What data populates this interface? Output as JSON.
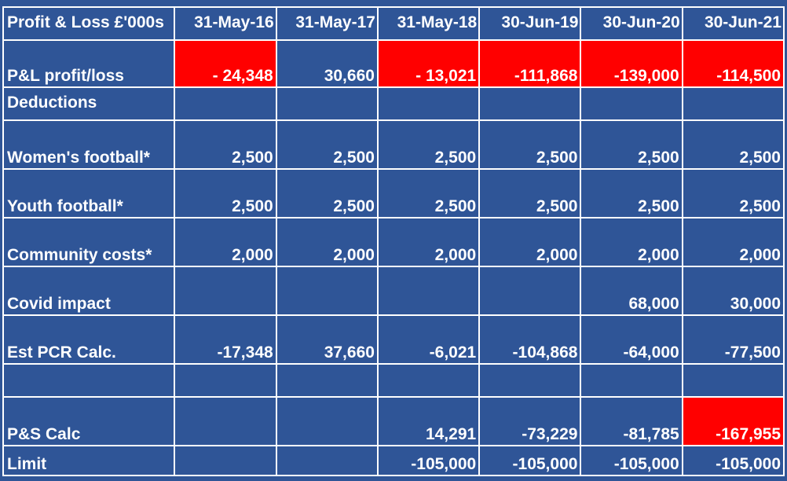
{
  "table": {
    "header": [
      "Profit & Loss £'000s",
      "31-May-16",
      "31-May-17",
      "31-May-18",
      "30-Jun-19",
      "30-Jun-20",
      "30-Jun-21"
    ],
    "rows": [
      {
        "label": "P&L profit/loss",
        "values": [
          "- 24,348",
          "30,660",
          "- 13,021",
          "-111,868",
          "-139,000",
          "-114,500"
        ],
        "red": [
          true,
          false,
          true,
          true,
          true,
          true
        ]
      },
      {
        "label": "Deductions",
        "values": [
          "",
          "",
          "",
          "",
          "",
          ""
        ]
      },
      {
        "label": "Women's football*",
        "values": [
          "2,500",
          "2,500",
          "2,500",
          "2,500",
          "2,500",
          "2,500"
        ]
      },
      {
        "label": "Youth football*",
        "values": [
          "2,500",
          "2,500",
          "2,500",
          "2,500",
          "2,500",
          "2,500"
        ]
      },
      {
        "label": "Community costs*",
        "values": [
          "2,000",
          "2,000",
          "2,000",
          "2,000",
          "2,000",
          "2,000"
        ]
      },
      {
        "label": "Covid impact",
        "values": [
          "",
          "",
          "",
          "",
          "68,000",
          "30,000"
        ]
      },
      {
        "label": "Est PCR Calc.",
        "values": [
          "-17,348",
          "37,660",
          "-6,021",
          "-104,868",
          "-64,000",
          "-77,500"
        ]
      },
      {
        "label": "",
        "values": [
          "",
          "",
          "",
          "",
          "",
          ""
        ]
      },
      {
        "label": "P&S Calc",
        "values": [
          "",
          "",
          "14,291",
          "-73,229",
          "-81,785",
          "-167,955"
        ],
        "red": [
          false,
          false,
          false,
          false,
          false,
          true
        ]
      },
      {
        "label": "Limit",
        "values": [
          "",
          "",
          "-105,000",
          "-105,000",
          "-105,000",
          "-105,000"
        ]
      }
    ]
  },
  "colors": {
    "background": "#2f5597",
    "highlight": "#ff0000",
    "text": "#ffffff",
    "grid": "#ffffff"
  }
}
